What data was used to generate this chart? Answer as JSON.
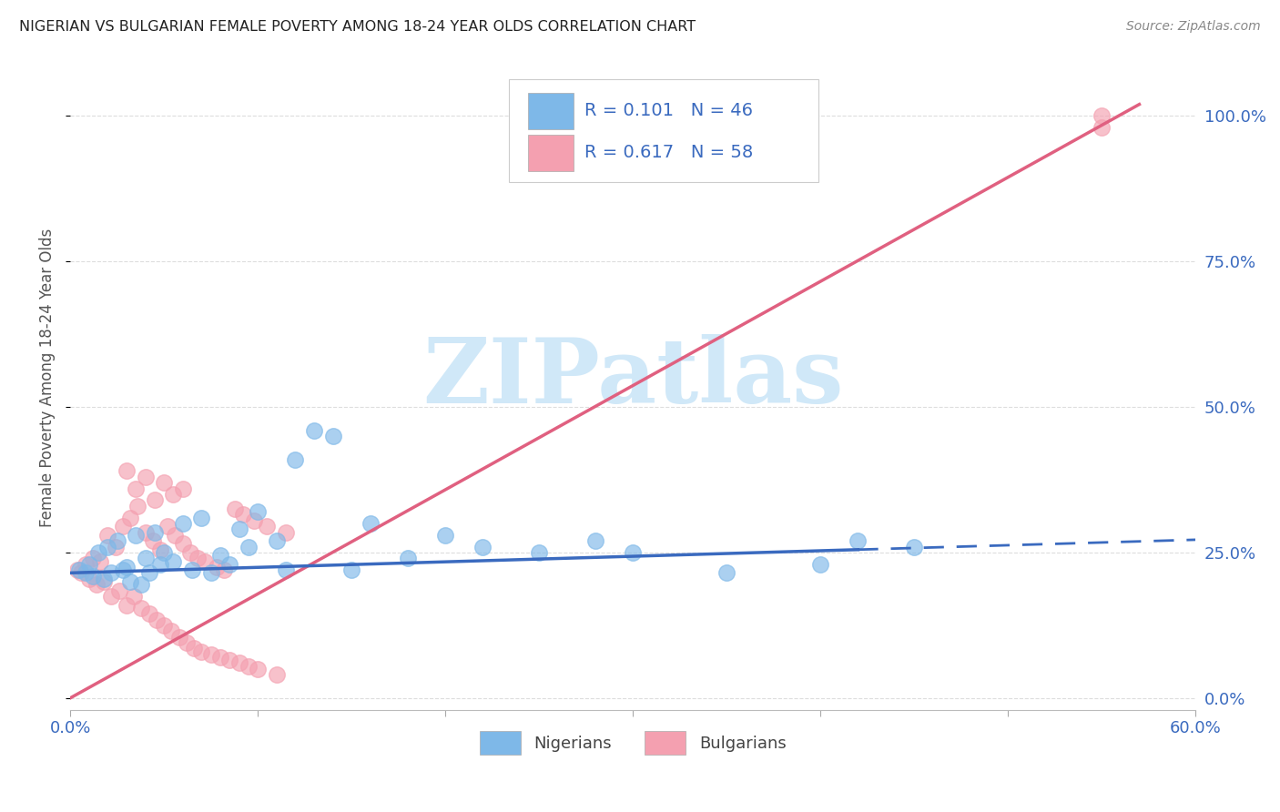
{
  "title": "NIGERIAN VS BULGARIAN FEMALE POVERTY AMONG 18-24 YEAR OLDS CORRELATION CHART",
  "source": "Source: ZipAtlas.com",
  "ylabel_label": "Female Poverty Among 18-24 Year Olds",
  "xlim": [
    0.0,
    0.6
  ],
  "ylim": [
    -0.02,
    1.12
  ],
  "grid_color": "#dddddd",
  "background_color": "#ffffff",
  "nigerians_color": "#7eb8e8",
  "bulgarians_color": "#f4a0b0",
  "nigerians_R": 0.101,
  "nigerians_N": 46,
  "bulgarians_R": 0.617,
  "bulgarians_N": 58,
  "legend_label_nigerians": "Nigerians",
  "legend_label_bulgarians": "Bulgarians",
  "trend_blue_color": "#3a6abf",
  "trend_pink_color": "#e06080",
  "watermark": "ZIPatlas",
  "watermark_color": "#d0e8f8",
  "nigerians_x": [
    0.005,
    0.008,
    0.01,
    0.012,
    0.015,
    0.018,
    0.02,
    0.022,
    0.025,
    0.028,
    0.03,
    0.032,
    0.035,
    0.038,
    0.04,
    0.042,
    0.045,
    0.048,
    0.05,
    0.055,
    0.06,
    0.065,
    0.07,
    0.075,
    0.08,
    0.085,
    0.09,
    0.095,
    0.1,
    0.11,
    0.115,
    0.12,
    0.13,
    0.14,
    0.15,
    0.16,
    0.18,
    0.2,
    0.22,
    0.25,
    0.28,
    0.3,
    0.35,
    0.4,
    0.42,
    0.45
  ],
  "nigerians_y": [
    0.22,
    0.215,
    0.23,
    0.21,
    0.25,
    0.205,
    0.26,
    0.215,
    0.27,
    0.22,
    0.225,
    0.2,
    0.28,
    0.195,
    0.24,
    0.215,
    0.285,
    0.23,
    0.25,
    0.235,
    0.3,
    0.22,
    0.31,
    0.215,
    0.245,
    0.23,
    0.29,
    0.26,
    0.32,
    0.27,
    0.22,
    0.41,
    0.46,
    0.45,
    0.22,
    0.3,
    0.24,
    0.28,
    0.26,
    0.25,
    0.27,
    0.25,
    0.215,
    0.23,
    0.27,
    0.26
  ],
  "bulgarians_x": [
    0.004,
    0.006,
    0.008,
    0.01,
    0.012,
    0.014,
    0.016,
    0.018,
    0.02,
    0.022,
    0.024,
    0.026,
    0.028,
    0.03,
    0.032,
    0.034,
    0.036,
    0.038,
    0.04,
    0.042,
    0.044,
    0.046,
    0.048,
    0.05,
    0.052,
    0.054,
    0.056,
    0.058,
    0.06,
    0.062,
    0.064,
    0.066,
    0.068,
    0.07,
    0.072,
    0.075,
    0.078,
    0.08,
    0.082,
    0.085,
    0.088,
    0.09,
    0.092,
    0.095,
    0.098,
    0.1,
    0.105,
    0.11,
    0.115,
    0.03,
    0.035,
    0.04,
    0.045,
    0.05,
    0.055,
    0.06,
    0.55,
    0.55
  ],
  "bulgarians_y": [
    0.22,
    0.215,
    0.23,
    0.205,
    0.24,
    0.195,
    0.235,
    0.2,
    0.28,
    0.175,
    0.26,
    0.185,
    0.295,
    0.16,
    0.31,
    0.175,
    0.33,
    0.155,
    0.285,
    0.145,
    0.27,
    0.135,
    0.255,
    0.125,
    0.295,
    0.115,
    0.28,
    0.105,
    0.265,
    0.095,
    0.25,
    0.085,
    0.24,
    0.08,
    0.235,
    0.075,
    0.225,
    0.07,
    0.22,
    0.065,
    0.325,
    0.06,
    0.315,
    0.055,
    0.305,
    0.05,
    0.295,
    0.04,
    0.285,
    0.39,
    0.36,
    0.38,
    0.34,
    0.37,
    0.35,
    0.36,
    0.98,
    1.0
  ],
  "trend_bul_x0": 0.0,
  "trend_bul_y0": 0.0,
  "trend_bul_x1": 0.57,
  "trend_bul_y1": 1.02,
  "trend_nig_x0": 0.0,
  "trend_nig_y0": 0.215,
  "trend_nig_x1_solid": 0.42,
  "trend_nig_y1_solid": 0.255,
  "trend_nig_x1_dash": 0.6,
  "trend_nig_y1_dash": 0.272
}
